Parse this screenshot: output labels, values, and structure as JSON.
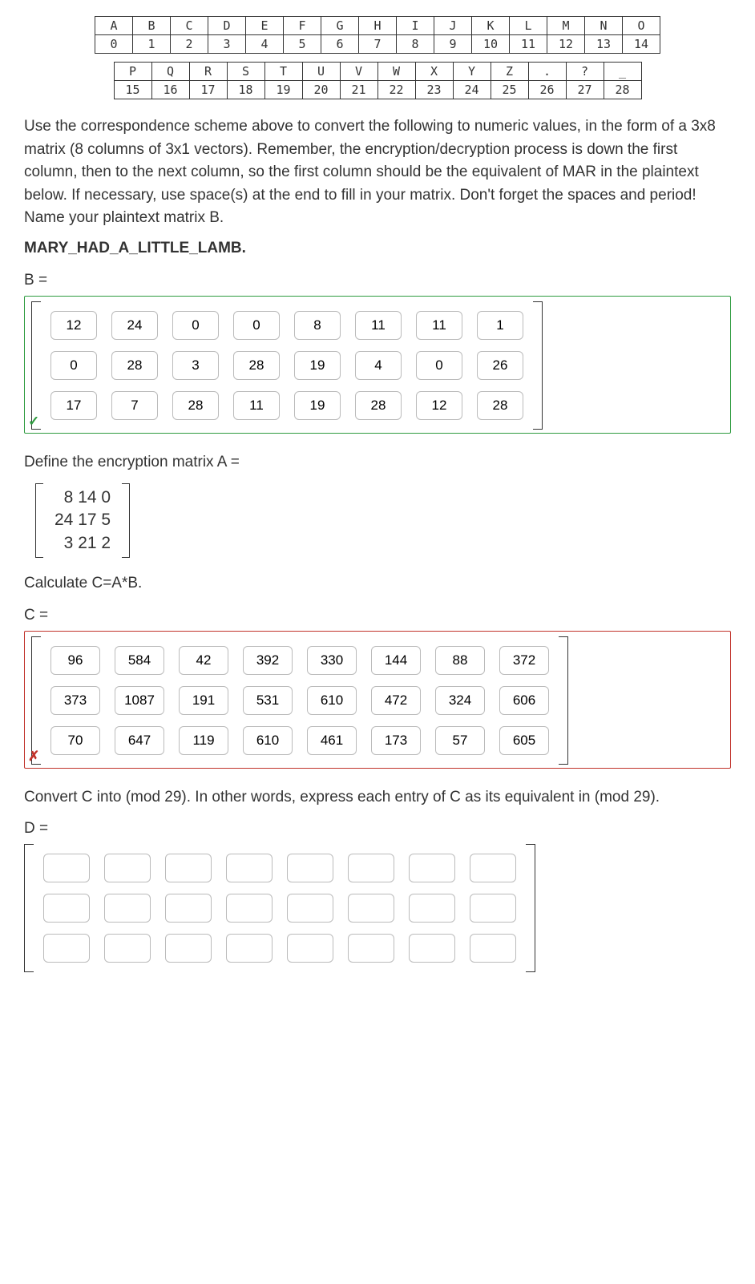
{
  "code_table": {
    "row1_letters": [
      "A",
      "B",
      "C",
      "D",
      "E",
      "F",
      "G",
      "H",
      "I",
      "J",
      "K",
      "L",
      "M",
      "N",
      "O"
    ],
    "row1_nums": [
      "0",
      "1",
      "2",
      "3",
      "4",
      "5",
      "6",
      "7",
      "8",
      "9",
      "10",
      "11",
      "12",
      "13",
      "14"
    ],
    "row2_letters": [
      "P",
      "Q",
      "R",
      "S",
      "T",
      "U",
      "V",
      "W",
      "X",
      "Y",
      "Z",
      ".",
      "?",
      "_"
    ],
    "row2_nums": [
      "15",
      "16",
      "17",
      "18",
      "19",
      "20",
      "21",
      "22",
      "23",
      "24",
      "25",
      "26",
      "27",
      "28"
    ]
  },
  "instruction": "Use the correspondence scheme above to convert the following to numeric values, in the form of a 3x8 matrix (8 columns of 3x1 vectors).  Remember, the encryption/decryption process is down the first column, then to the next column, so the first column should be the equivalent of MAR in the plaintext below.  If necessary, use space(s) at the end to fill in your matrix.  Don't forget the spaces and period!  Name your plaintext matrix B.",
  "plaintext": "MARY_HAD_A_LITTLE_LAMB.",
  "labels": {
    "B": "B =",
    "A_def": "Define the encryption matrix A =",
    "calc": "Calculate C=A*B.",
    "C": "C =",
    "conv": "Convert C into (mod 29).  In other words, express each entry of C as its equivalent in (mod 29).",
    "D": "D ="
  },
  "B": [
    [
      "12",
      "24",
      "0",
      "0",
      "8",
      "11",
      "11",
      "1"
    ],
    [
      "0",
      "28",
      "3",
      "28",
      "19",
      "4",
      "0",
      "26"
    ],
    [
      "17",
      "7",
      "28",
      "11",
      "19",
      "28",
      "12",
      "28"
    ]
  ],
  "A": " 8 14 0\n24 17 5\n 3 21 2",
  "C": [
    [
      "96",
      "584",
      "42",
      "392",
      "330",
      "144",
      "88",
      "372"
    ],
    [
      "373",
      "1087",
      "191",
      "531",
      "610",
      "472",
      "324",
      "606"
    ],
    [
      "70",
      "647",
      "119",
      "610",
      "461",
      "173",
      "57",
      "605"
    ]
  ],
  "D": [
    [
      "",
      "",
      "",
      "",
      "",
      "",
      "",
      ""
    ],
    [
      "",
      "",
      "",
      "",
      "",
      "",
      "",
      ""
    ],
    [
      "",
      "",
      "",
      "",
      "",
      "",
      "",
      ""
    ]
  ],
  "status": {
    "B": "correct",
    "C": "incorrect"
  },
  "colors": {
    "correct": "#2e9b3f",
    "incorrect": "#c1322a"
  }
}
